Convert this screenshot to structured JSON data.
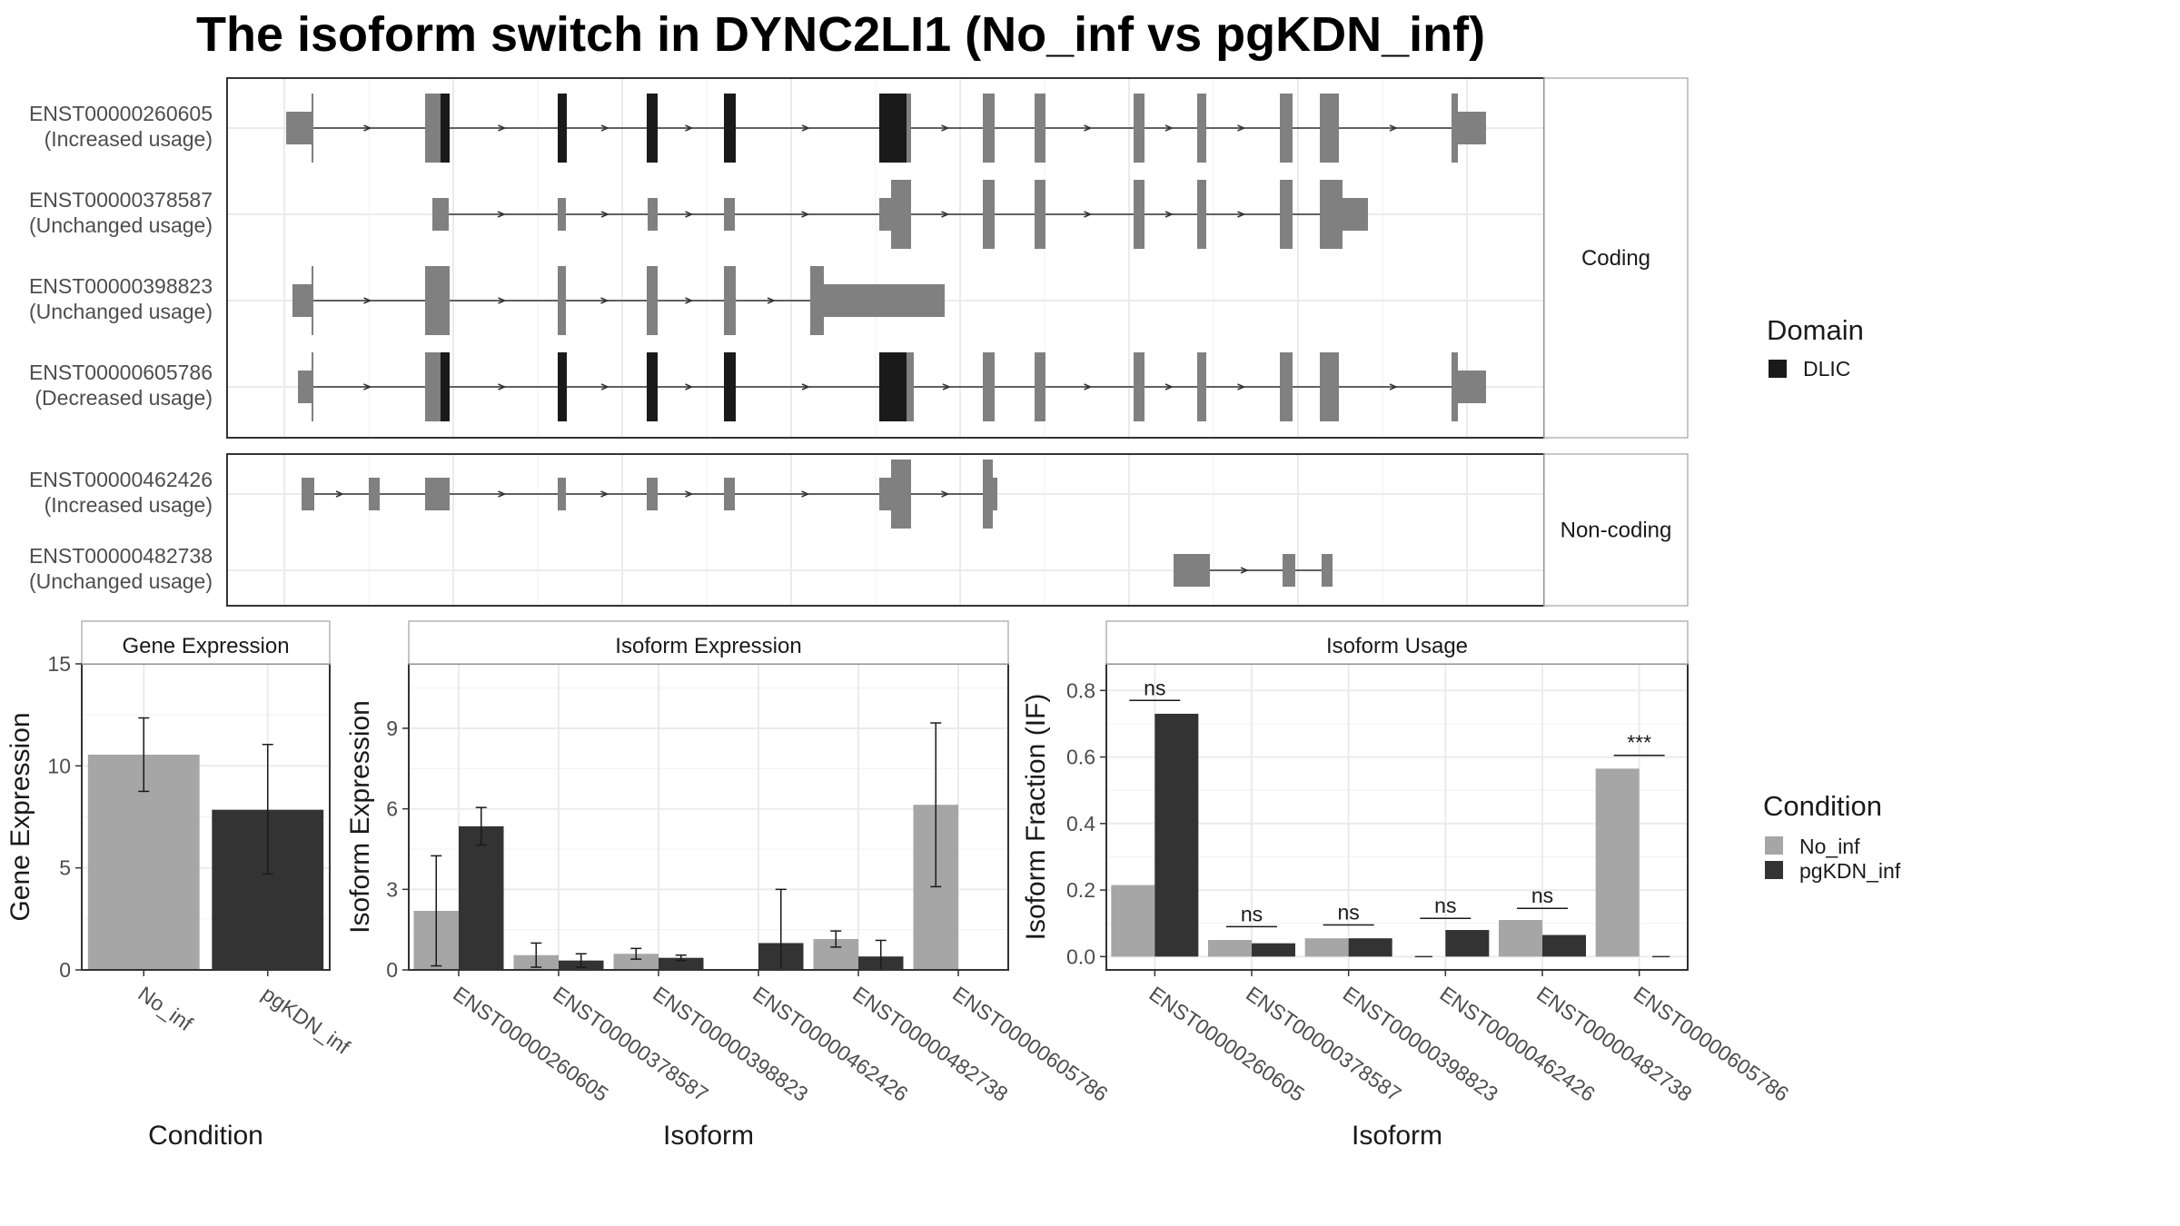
{
  "title": "The isoform switch in DYNC2LI1 (No_inf vs pgKDN_inf)",
  "colors": {
    "exon": "#808080",
    "domain": "#1a1a1a",
    "line": "#333333",
    "no_inf": "#a6a6a6",
    "pgkdn_inf": "#333333",
    "grid_major": "#ebebeb",
    "grid_minor": "#f3f3f3",
    "strip_bg": "#ffffff",
    "panel_border": "#333333"
  },
  "legends": {
    "domain": {
      "title": "Domain",
      "items": [
        {
          "label": "DLIC",
          "color": "#1a1a1a"
        }
      ]
    },
    "condition": {
      "title": "Condition",
      "items": [
        {
          "label": "No_inf",
          "color": "#a6a6a6"
        },
        {
          "label": "pgKDN_inf",
          "color": "#333333"
        }
      ]
    }
  },
  "chart_data": [
    {
      "type": "gene-structure",
      "panels": [
        {
          "strip": "Coding",
          "transcripts": [
            {
              "id": "ENST00000260605",
              "usage": "(Increased usage)"
            },
            {
              "id": "ENST00000378587",
              "usage": "(Unchanged usage)"
            },
            {
              "id": "ENST00000398823",
              "usage": "(Unchanged usage)"
            },
            {
              "id": "ENST00000605786",
              "usage": "(Decreased usage)"
            }
          ]
        },
        {
          "strip": "Non-coding",
          "transcripts": [
            {
              "id": "ENST00000462426",
              "usage": "(Increased usage)"
            },
            {
              "id": "ENST00000482738",
              "usage": "(Unchanged usage)"
            }
          ]
        }
      ]
    },
    {
      "type": "bar",
      "strip": "Gene Expression",
      "xlabel": "Condition",
      "ylabel": "Gene Expression",
      "ylim": [
        0,
        15
      ],
      "yticks": [
        0,
        5,
        10,
        15
      ],
      "categories": [
        "No_inf",
        "pgKDN_inf"
      ],
      "values": [
        10.55,
        7.85
      ],
      "err_low": [
        8.75,
        4.7
      ],
      "err_high": [
        12.35,
        11.05
      ]
    },
    {
      "type": "bar",
      "strip": "Isoform Expression",
      "xlabel": "Isoform",
      "ylabel": "Isoform Expression",
      "ylim": [
        0,
        11.4
      ],
      "yticks": [
        0,
        3,
        6,
        9
      ],
      "categories": [
        "ENST00000260605",
        "ENST00000378587",
        "ENST00000398823",
        "ENST00000462426",
        "ENST00000482738",
        "ENST00000605786"
      ],
      "series": [
        {
          "name": "No_inf",
          "values": [
            2.2,
            0.55,
            0.6,
            0.0,
            1.15,
            6.15
          ],
          "err_low": [
            0.15,
            0.1,
            0.4,
            0.0,
            0.85,
            3.1
          ],
          "err_high": [
            4.25,
            1.0,
            0.8,
            0.0,
            1.45,
            9.2
          ]
        },
        {
          "name": "pgKDN_inf",
          "values": [
            5.35,
            0.35,
            0.45,
            1.0,
            0.5,
            0.0
          ],
          "err_low": [
            4.65,
            0.1,
            0.35,
            0.0,
            0.0,
            0.0
          ],
          "err_high": [
            6.05,
            0.6,
            0.55,
            3.0,
            1.1,
            0.0
          ]
        }
      ]
    },
    {
      "type": "bar",
      "strip": "Isoform Usage",
      "xlabel": "Isoform",
      "ylabel": "Isoform Fraction (IF)",
      "ylim": [
        -0.04,
        0.88
      ],
      "yticks": [
        0.0,
        0.2,
        0.4,
        0.6,
        0.8
      ],
      "ytick_labels": [
        "0.0",
        "0.2",
        "0.4",
        "0.6",
        "0.8"
      ],
      "categories": [
        "ENST00000260605",
        "ENST00000378587",
        "ENST00000398823",
        "ENST00000462426",
        "ENST00000482738",
        "ENST00000605786"
      ],
      "series": [
        {
          "name": "No_inf",
          "values": [
            0.215,
            0.05,
            0.055,
            0.0,
            0.11,
            0.565
          ]
        },
        {
          "name": "pgKDN_inf",
          "values": [
            0.73,
            0.04,
            0.055,
            0.08,
            0.065,
            0.0
          ]
        }
      ],
      "annotations": [
        {
          "label": "ns",
          "level": 0.77
        },
        {
          "label": "ns",
          "level": 0.09
        },
        {
          "label": "ns",
          "level": 0.095
        },
        {
          "label": "ns",
          "level": 0.115
        },
        {
          "label": "ns",
          "level": 0.145
        },
        {
          "label": "***",
          "level": 0.605
        }
      ]
    }
  ]
}
